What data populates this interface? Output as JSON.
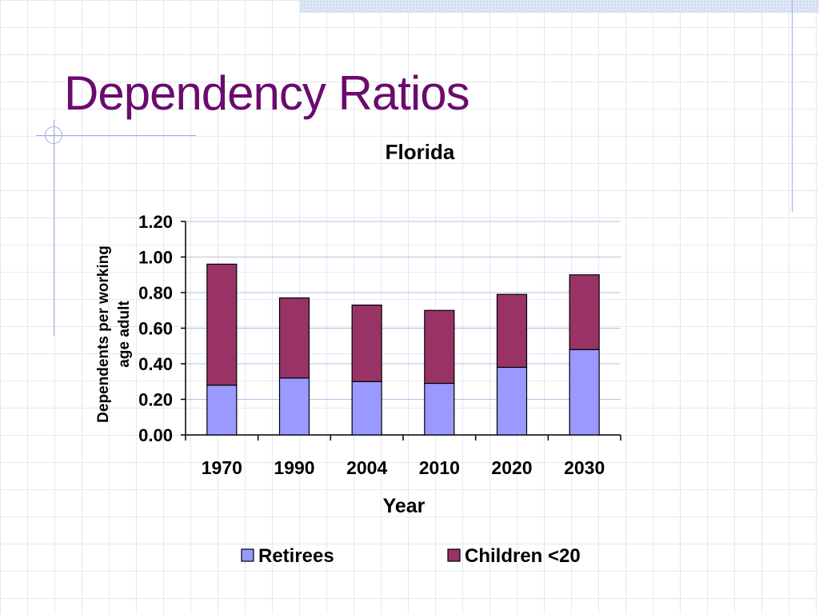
{
  "slide": {
    "title": "Dependency Ratios"
  },
  "chart_data": {
    "type": "bar",
    "stacked": true,
    "title": "Florida",
    "xlabel": "Year",
    "ylabel": "Dependents per working age adult",
    "categories": [
      "1970",
      "1990",
      "2004",
      "2010",
      "2020",
      "2030"
    ],
    "series": [
      {
        "name": "Retirees",
        "values": [
          0.28,
          0.32,
          0.3,
          0.29,
          0.38,
          0.48
        ],
        "color": "#9999ff"
      },
      {
        "name": "Children <20",
        "values": [
          0.68,
          0.45,
          0.43,
          0.41,
          0.41,
          0.42
        ],
        "color": "#993366"
      }
    ],
    "ylim": [
      0,
      1.2
    ],
    "yticks": [
      "0.00",
      "0.20",
      "0.40",
      "0.60",
      "0.80",
      "1.00",
      "1.20"
    ],
    "grid": true,
    "legend_position": "bottom"
  }
}
